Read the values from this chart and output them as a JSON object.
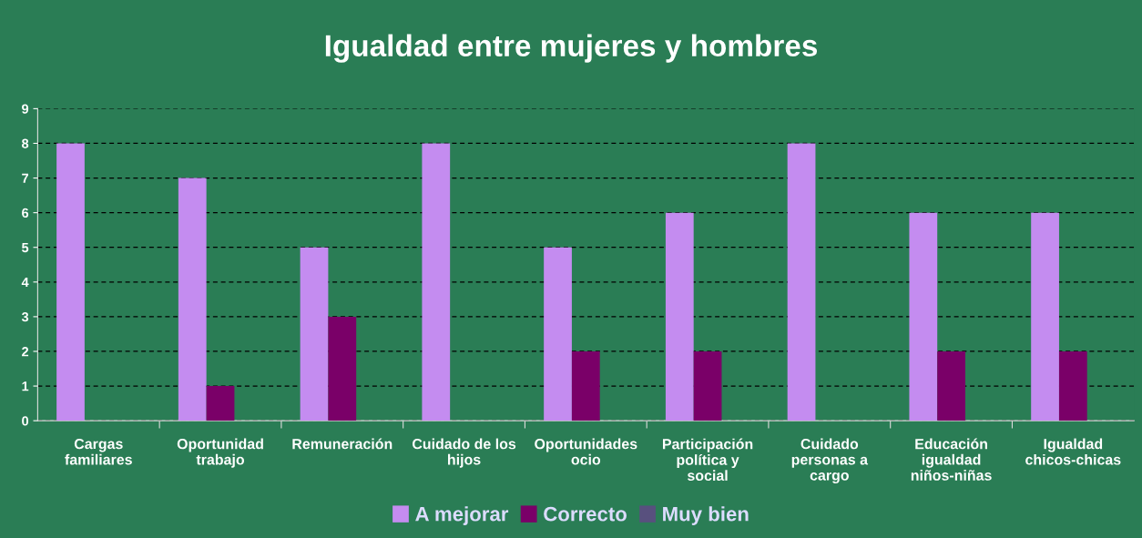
{
  "chart_data": {
    "type": "bar",
    "title": "Igualdad entre mujeres y hombres",
    "categories": [
      "Cargas\nfamiliares",
      "Oportunidad\ntrabajo",
      "Remuneración",
      "Cuidado de los\nhijos",
      "Oportunidades\nocio",
      "Participación\npolítica y\nsocial",
      "Cuidado\npersonas a\ncargo",
      "Educación\nigualdad\nniños-niñas",
      "Igualdad\nchicos-chicas"
    ],
    "series": [
      {
        "name": "A mejorar",
        "color": "#c48cf0",
        "values": [
          8,
          7,
          5,
          8,
          5,
          6,
          8,
          6,
          6
        ]
      },
      {
        "name": "Correcto",
        "color": "#7a0068",
        "values": [
          0,
          1,
          3,
          0,
          2,
          2,
          0,
          2,
          2
        ]
      },
      {
        "name": "Muy bien",
        "color": "#58507e",
        "values": [
          0,
          0,
          0,
          0,
          0,
          0,
          0,
          0,
          0
        ]
      }
    ],
    "ylim": [
      0,
      9
    ],
    "yticks": [
      0,
      1,
      2,
      3,
      4,
      5,
      6,
      7,
      8,
      9
    ],
    "grid": "y",
    "legend": "bottom"
  }
}
